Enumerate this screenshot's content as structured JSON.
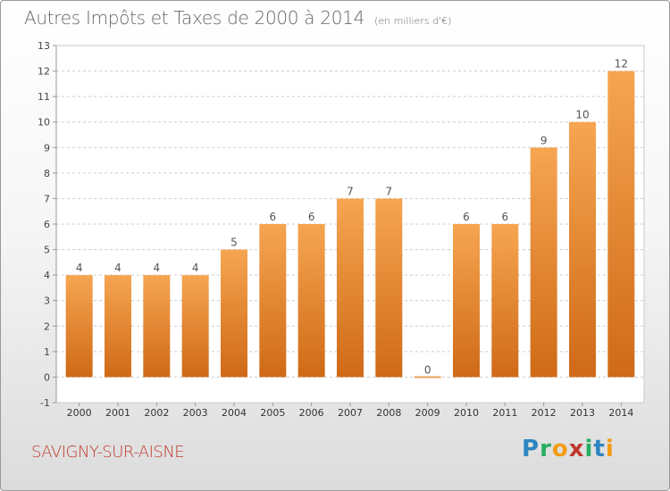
{
  "title": "Autres Impôts et Taxes de 2000 à 2014",
  "unit_note": "(en milliers d'€)",
  "commune": "SAVIGNY-SUR-AISNE",
  "logo": {
    "letters": [
      "P",
      "r",
      "o",
      "x",
      "i",
      "t",
      "i"
    ],
    "colors": [
      "#2e86c1",
      "#27ae60",
      "#f39c12",
      "#c0392b",
      "#27ae60",
      "#2e86c1",
      "#f39c12"
    ]
  },
  "colors": {
    "bar_top": "#f6a551",
    "bar_bottom": "#cf6a17",
    "zero_bar": "#e8a15a",
    "grid": "#cccccc",
    "commune": "#c0392b"
  },
  "chart_data": {
    "type": "bar",
    "title": "Autres Impôts et Taxes de 2000 à 2014",
    "subtitle": "(en milliers d'€)",
    "categories": [
      "2000",
      "2001",
      "2002",
      "2003",
      "2004",
      "2005",
      "2006",
      "2007",
      "2008",
      "2009",
      "2010",
      "2011",
      "2012",
      "2013",
      "2014"
    ],
    "values": [
      4,
      4,
      4,
      4,
      5,
      6,
      6,
      7,
      7,
      0,
      6,
      6,
      9,
      10,
      12
    ],
    "data_labels": [
      "4",
      "4",
      "4",
      "4",
      "5",
      "6",
      "6",
      "7",
      "7",
      "0",
      "6",
      "6",
      "9",
      "10",
      "12"
    ],
    "y_ticks": [
      "-1",
      "0",
      "1",
      "2",
      "3",
      "4",
      "5",
      "6",
      "7",
      "8",
      "9",
      "10",
      "11",
      "12",
      "13"
    ],
    "ylim": [
      -1,
      13
    ],
    "grid": true,
    "xlabel": "",
    "ylabel": ""
  }
}
